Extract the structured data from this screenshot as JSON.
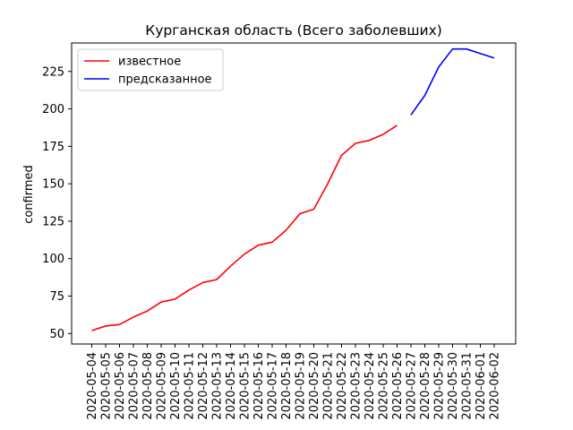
{
  "chart_data": {
    "type": "line",
    "title": "Курганская область (Всего заболевших)",
    "xlabel": "",
    "ylabel": "confirmed",
    "ylim": [
      43,
      244
    ],
    "yticks": [
      50,
      75,
      100,
      125,
      150,
      175,
      200,
      225
    ],
    "grid": false,
    "legend_position": "top-left",
    "x": [
      "2020-05-04",
      "2020-05-05",
      "2020-05-06",
      "2020-05-07",
      "2020-05-08",
      "2020-05-09",
      "2020-05-10",
      "2020-05-11",
      "2020-05-12",
      "2020-05-13",
      "2020-05-14",
      "2020-05-15",
      "2020-05-16",
      "2020-05-17",
      "2020-05-18",
      "2020-05-19",
      "2020-05-20",
      "2020-05-21",
      "2020-05-22",
      "2020-05-23",
      "2020-05-24",
      "2020-05-25",
      "2020-05-26",
      "2020-05-27",
      "2020-05-28",
      "2020-05-29",
      "2020-05-30",
      "2020-05-31",
      "2020-06-01",
      "2020-06-02"
    ],
    "series": [
      {
        "name": "известное",
        "color": "#ff0000",
        "x": [
          "2020-05-04",
          "2020-05-05",
          "2020-05-06",
          "2020-05-07",
          "2020-05-08",
          "2020-05-09",
          "2020-05-10",
          "2020-05-11",
          "2020-05-12",
          "2020-05-13",
          "2020-05-14",
          "2020-05-15",
          "2020-05-16",
          "2020-05-17",
          "2020-05-18",
          "2020-05-19",
          "2020-05-20",
          "2020-05-21",
          "2020-05-22",
          "2020-05-23",
          "2020-05-24",
          "2020-05-25",
          "2020-05-26"
        ],
        "values": [
          52,
          55,
          56,
          61,
          65,
          71,
          73,
          79,
          84,
          86,
          95,
          103,
          109,
          111,
          119,
          130,
          133,
          150,
          169,
          177,
          179,
          183,
          189
        ]
      },
      {
        "name": "предсказанное",
        "color": "#0000ff",
        "x": [
          "2020-05-27",
          "2020-05-28",
          "2020-05-29",
          "2020-05-30",
          "2020-05-31",
          "2020-06-01",
          "2020-06-02"
        ],
        "values": [
          196,
          209,
          228,
          240,
          240,
          237,
          234
        ]
      }
    ]
  }
}
